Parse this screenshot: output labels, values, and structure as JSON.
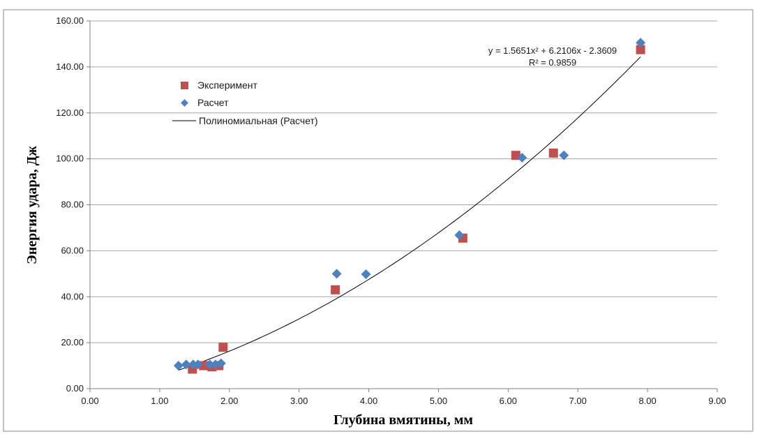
{
  "chart_data": {
    "type": "scatter",
    "title": "",
    "xlabel": "Глубина вмятины, мм",
    "ylabel": "Энергия удара, Дж",
    "xlim": [
      0,
      9
    ],
    "ylim": [
      0,
      160
    ],
    "x_ticks": [
      "0.00",
      "1.00",
      "2.00",
      "3.00",
      "4.00",
      "5.00",
      "6.00",
      "7.00",
      "8.00",
      "9.00"
    ],
    "y_ticks": [
      "0.00",
      "20.00",
      "40.00",
      "60.00",
      "80.00",
      "100.00",
      "120.00",
      "140.00",
      "160.00"
    ],
    "grid": "horizontal",
    "legend_position": "upper-left",
    "series": [
      {
        "name": "Эксперимент",
        "marker": "square",
        "color": "#c0504d",
        "points": [
          {
            "x": 1.47,
            "y": 8.5
          },
          {
            "x": 1.63,
            "y": 10.0
          },
          {
            "x": 1.75,
            "y": 9.5
          },
          {
            "x": 1.85,
            "y": 10.0
          },
          {
            "x": 1.91,
            "y": 18.0
          },
          {
            "x": 3.52,
            "y": 43.0
          },
          {
            "x": 5.35,
            "y": 65.5
          },
          {
            "x": 6.11,
            "y": 101.5
          },
          {
            "x": 6.65,
            "y": 102.5
          },
          {
            "x": 7.9,
            "y": 147.5
          }
        ]
      },
      {
        "name": "Расчет",
        "marker": "diamond",
        "color": "#4f81bd",
        "points": [
          {
            "x": 1.27,
            "y": 10.0
          },
          {
            "x": 1.38,
            "y": 10.5
          },
          {
            "x": 1.48,
            "y": 10.5
          },
          {
            "x": 1.55,
            "y": 10.5
          },
          {
            "x": 1.72,
            "y": 10.5
          },
          {
            "x": 1.8,
            "y": 10.5
          },
          {
            "x": 1.88,
            "y": 11.0
          },
          {
            "x": 3.54,
            "y": 50.0
          },
          {
            "x": 3.96,
            "y": 49.8
          },
          {
            "x": 5.3,
            "y": 66.8
          },
          {
            "x": 6.2,
            "y": 100.5
          },
          {
            "x": 6.8,
            "y": 101.5
          },
          {
            "x": 7.9,
            "y": 150.5
          }
        ]
      }
    ],
    "trendline": {
      "name": "Полиномиальная (Расчет)",
      "type": "polynomial",
      "coefficients": [
        1.5651,
        6.2106,
        -2.3609
      ],
      "x_range": [
        1.27,
        7.9
      ],
      "color": "#000000",
      "equation_label": "y = 1.5651x² + 6.2106x - 2.3609",
      "r2_label": "R² = 0.9859"
    }
  }
}
